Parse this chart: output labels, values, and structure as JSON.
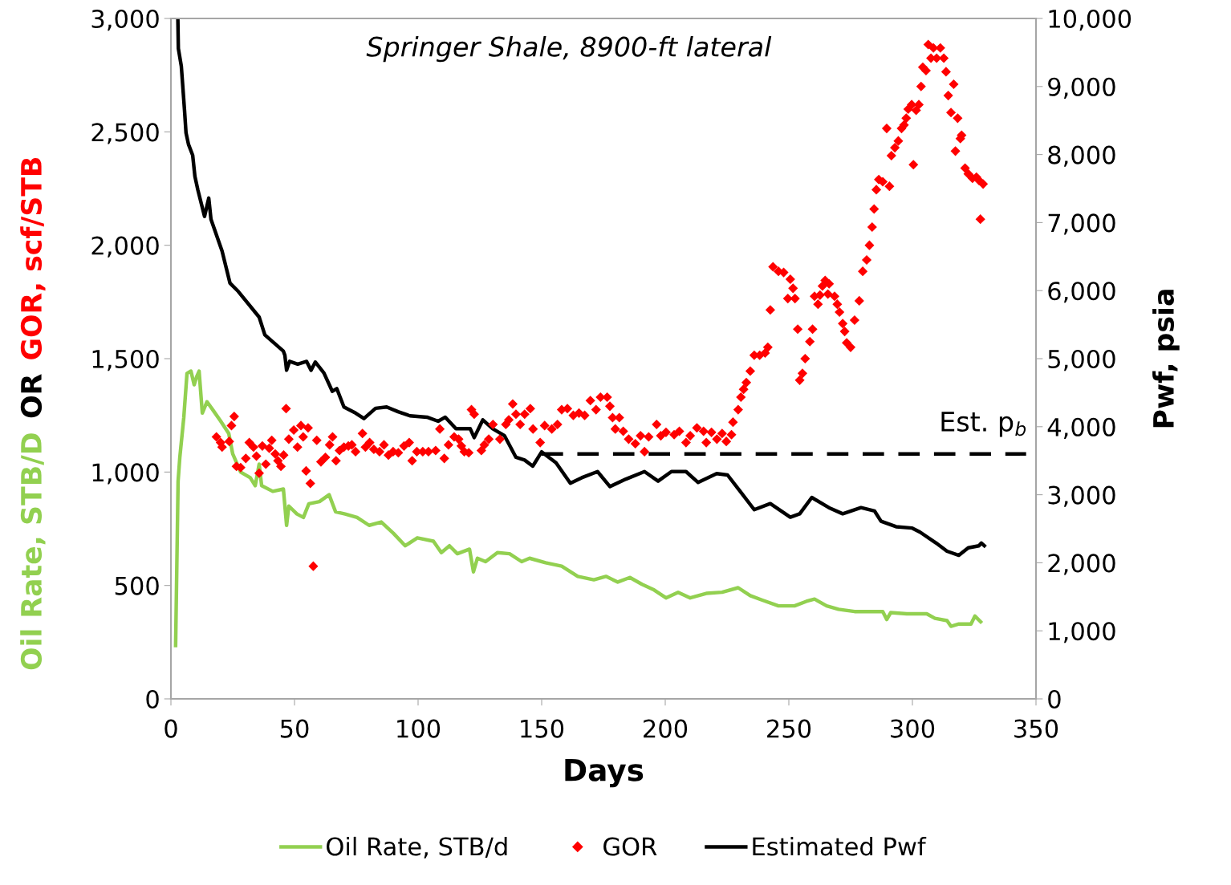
{
  "chart_data": {
    "type": "line",
    "title": "Springer Shale, 8900-ft lateral",
    "xlabel": "Days",
    "ylabel": [
      "Oil Rate, STB/D",
      "OR",
      "GOR, scf/STB"
    ],
    "y2label": "Pwf, psia",
    "xlim": [
      0,
      350
    ],
    "xticks": [
      0,
      50,
      100,
      150,
      200,
      250,
      300,
      350
    ],
    "ylim": [
      0,
      3000
    ],
    "yticks": [
      0,
      500,
      {
        "value": 1000,
        "label": "1,000"
      },
      {
        "value": 1500,
        "label": "1,500"
      },
      {
        "value": 2000,
        "label": "2,000"
      },
      {
        "value": 2500,
        "label": "2,500"
      },
      {
        "value": 3000,
        "label": "3,000"
      }
    ],
    "y2lim": [
      0,
      10000
    ],
    "y2ticks": [
      0,
      {
        "value": 1000,
        "label": "1,000"
      },
      {
        "value": 2000,
        "label": "2,000"
      },
      {
        "value": 3000,
        "label": "3,000"
      },
      {
        "value": 4000,
        "label": "4,000"
      },
      {
        "value": 5000,
        "label": "5,000"
      },
      {
        "value": 6000,
        "label": "6,000"
      },
      {
        "value": 7000,
        "label": "7,000"
      },
      {
        "value": 8000,
        "label": "8,000"
      },
      {
        "value": 9000,
        "label": "9,000"
      },
      {
        "value": 10000,
        "label": "10,000"
      }
    ],
    "grid": false,
    "legend": "bottom",
    "annotations": [
      "Est. p$_{b}$"
    ],
    "series": [
      {
        "name": "Oil Rate, STB/d",
        "color": "#92d050",
        "x": [
          1.9,
          2.9,
          3.6,
          5.2,
          6.5,
          8.1,
          9.4,
          10.4,
          11.4,
          12.7,
          14.6,
          16.9,
          20.1,
          23.4,
          25,
          28.2,
          32.1,
          34.1,
          35.7,
          36.7,
          41.2,
          45.5,
          46.8,
          47.7,
          51,
          53.6,
          55.8,
          60.1,
          64,
          66.6,
          70.5,
          75.3,
          80.2,
          85.1,
          90,
          94.8,
          99.7,
          106.2,
          109.4,
          112.7,
          115.9,
          120.8,
          122.4,
          124,
          127.3,
          132.1,
          137,
          141.9,
          145.1,
          151.6,
          158.1,
          164.6,
          171.1,
          176,
          180.8,
          185.7,
          190.6,
          195.5,
          200.3,
          205.2,
          210.1,
          216.6,
          223,
          229.5,
          234.4,
          239.3,
          245.8,
          252.3,
          257.1,
          260.4,
          265.3,
          270.1,
          276.6,
          283.1,
          288,
          289.6,
          291.2,
          297.7,
          305.8,
          309.1,
          314,
          315.6,
          318.8,
          323.7,
          325.3,
          327.6
        ],
        "values": [
          235,
          960,
          1065,
          1240,
          1435,
          1445,
          1385,
          1420,
          1445,
          1260,
          1310,
          1275,
          1225,
          1170,
          1080,
          1000,
          975,
          940,
          1035,
          940,
          915,
          925,
          765,
          850,
          815,
          800,
          860,
          870,
          900,
          825,
          815,
          800,
          765,
          780,
          730,
          675,
          710,
          695,
          645,
          675,
          640,
          660,
          560,
          620,
          605,
          645,
          640,
          605,
          620,
          600,
          585,
          540,
          525,
          540,
          515,
          535,
          505,
          480,
          445,
          470,
          445,
          465,
          470,
          490,
          455,
          435,
          410,
          410,
          430,
          440,
          410,
          395,
          385,
          385,
          385,
          350,
          380,
          375,
          375,
          355,
          345,
          320,
          330,
          330,
          365,
          340
        ]
      },
      {
        "name": "GOR",
        "type": "scatter",
        "marker": "diamond",
        "color": "#ff0000",
        "x": [
          18.4,
          20.1,
          20.7,
          23.6,
          25.6,
          24.5,
          26.5,
          28.2,
          30.3,
          31.7,
          33.4,
          34.6,
          35.7,
          37,
          38.4,
          39.8,
          40.8,
          42.2,
          43.3,
          44.5,
          45.6,
          46.6,
          47.7,
          49.7,
          51.2,
          52.6,
          53.5,
          54.7,
          55.5,
          56.4,
          57.6,
          59,
          60.7,
          62.5,
          64.2,
          65.4,
          66.8,
          68.2,
          70,
          71.8,
          73.2,
          74.7,
          77.5,
          78.7,
          80.4,
          82.1,
          84.4,
          86.2,
          88,
          89.9,
          92,
          94.3,
          96.4,
          97.6,
          99.5,
          101.9,
          104.2,
          107.1,
          108.8,
          110.6,
          112.3,
          114.6,
          116.4,
          117.5,
          118.7,
          120.5,
          121.6,
          122.7,
          125.6,
          126.8,
          128.6,
          130.3,
          133.1,
          135.5,
          136.7,
          138.3,
          139.6,
          141.3,
          143.1,
          145.4,
          146.5,
          149.4,
          151.2,
          154.1,
          156.4,
          158.1,
          160.4,
          162.8,
          165.1,
          167.4,
          169.7,
          172,
          173.8,
          176.5,
          177.6,
          178.7,
          179.8,
          181.4,
          183,
          185.2,
          187.9,
          190,
          191.6,
          193.3,
          196.5,
          198.2,
          200.3,
          203.6,
          205.7,
          208.4,
          210.1,
          212.8,
          215.5,
          216.6,
          218.7,
          220.9,
          223,
          224.7,
          226.8,
          227.4,
          229.5,
          230.6,
          231.7,
          232.8,
          234.4,
          236,
          238.2,
          240.4,
          241.5,
          242.5,
          243.6,
          245.8,
          247.9,
          249.6,
          250.6,
          251.7,
          252.5,
          253.6,
          254.4,
          255.5,
          256.6,
          258.5,
          259.6,
          260.4,
          261.8,
          262.6,
          263.6,
          264.7,
          265.8,
          266.3,
          268.5,
          269.6,
          270.5,
          271.8,
          272.6,
          273.4,
          275,
          276.6,
          278.5,
          279.9,
          281.5,
          282.6,
          283.7,
          284.5,
          285.4,
          286.4,
          288,
          289.6,
          290.7,
          291.5,
          292.9,
          294.3,
          295.6,
          296.6,
          297.5,
          298.3,
          299.7,
          300.4,
          301.5,
          302.6,
          303.5,
          304.2,
          305.5,
          306.4,
          307.5,
          308.5,
          309.8,
          311.3,
          312.7,
          313.6,
          314.5,
          315.6,
          316.7,
          317.4,
          318.3,
          319.4,
          319.9,
          321.3,
          322.6,
          324.3,
          325.9,
          327,
          327.5,
          328.6
        ],
        "values": [
          1155,
          1130,
          1110,
          1135,
          1245,
          1205,
          1025,
          1020,
          1060,
          1130,
          1110,
          1070,
          995,
          1115,
          1035,
          1105,
          1140,
          1080,
          1050,
          1025,
          1075,
          1280,
          1145,
          1185,
          1110,
          1205,
          1155,
          1005,
          1195,
          950,
          585,
          1140,
          1045,
          1065,
          1120,
          1155,
          1050,
          1095,
          1110,
          1115,
          1120,
          1090,
          1170,
          1110,
          1130,
          1100,
          1090,
          1120,
          1075,
          1090,
          1085,
          1115,
          1130,
          1050,
          1090,
          1090,
          1090,
          1095,
          1190,
          1060,
          1120,
          1155,
          1145,
          1115,
          1090,
          1085,
          1275,
          1255,
          1095,
          1120,
          1145,
          1210,
          1145,
          1210,
          1230,
          1300,
          1255,
          1210,
          1255,
          1280,
          1190,
          1130,
          1205,
          1190,
          1210,
          1275,
          1280,
          1250,
          1260,
          1250,
          1315,
          1275,
          1330,
          1330,
          1290,
          1240,
          1190,
          1240,
          1180,
          1145,
          1125,
          1160,
          1090,
          1155,
          1210,
          1160,
          1175,
          1165,
          1180,
          1130,
          1160,
          1195,
          1180,
          1130,
          1175,
          1145,
          1170,
          1135,
          1165,
          1220,
          1275,
          1330,
          1365,
          1395,
          1445,
          1515,
          1515,
          1525,
          1550,
          1715,
          1905,
          1885,
          1880,
          1765,
          1850,
          1810,
          1765,
          1630,
          1405,
          1435,
          1500,
          1575,
          1630,
          1775,
          1740,
          1780,
          1820,
          1845,
          1785,
          1830,
          1775,
          1740,
          1705,
          1655,
          1620,
          1570,
          1550,
          1670,
          1755,
          1885,
          1935,
          2000,
          2080,
          2160,
          2245,
          2290,
          2280,
          2515,
          2260,
          2395,
          2430,
          2460,
          2515,
          2530,
          2560,
          2600,
          2620,
          2355,
          2595,
          2620,
          2700,
          2785,
          2770,
          2885,
          2825,
          2870,
          2825,
          2870,
          2825,
          2765,
          2660,
          2585,
          2710,
          2415,
          2560,
          2470,
          2485,
          2340,
          2315,
          2295,
          2300,
          2285,
          2115,
          2270
        ]
      },
      {
        "name": "Estimated Pwf",
        "type": "line",
        "axis": "y2",
        "color": "#000000",
        "x": [
          2.8,
          3.0,
          4.2,
          5.5,
          6.1,
          7.1,
          8.8,
          9.7,
          10.9,
          13.6,
          15.3,
          16.2,
          20.7,
          23.9,
          27.2,
          35.7,
          38,
          45.5,
          46.1,
          46.8,
          48,
          51.3,
          54.9,
          56.7,
          58.4,
          61.9,
          65.3,
          67.1,
          70,
          74.7,
          78.1,
          82.8,
          87.3,
          91.9,
          96.7,
          103.6,
          108.1,
          111,
          115.3,
          121.1,
          122.7,
          126.2,
          130.2,
          134.9,
          139.6,
          143.1,
          146.4,
          150,
          155.8,
          161.6,
          166.2,
          172.6,
          177.6,
          184.1,
          191.6,
          197.1,
          202.5,
          208.4,
          213.3,
          220.8,
          225.2,
          230.5,
          236,
          242.5,
          250.6,
          254.4,
          259.3,
          266.2,
          271.8,
          279.2,
          284.7,
          287.3,
          293.4,
          299.9,
          303.1,
          309.6,
          314,
          318.8,
          322.6,
          326.9,
          327.9,
          329.1
        ],
        "values": [
          10000,
          9560,
          9300,
          8650,
          8320,
          8150,
          7990,
          7680,
          7480,
          7090,
          7360,
          7050,
          6580,
          6110,
          5990,
          5610,
          5350,
          5110,
          5050,
          4830,
          4960,
          4920,
          4960,
          4830,
          4950,
          4790,
          4520,
          4560,
          4290,
          4200,
          4120,
          4270,
          4290,
          4220,
          4160,
          4140,
          4080,
          4140,
          3970,
          3970,
          3840,
          4100,
          3970,
          3870,
          3550,
          3510,
          3420,
          3630,
          3470,
          3170,
          3250,
          3340,
          3120,
          3230,
          3340,
          3200,
          3340,
          3340,
          3180,
          3310,
          3290,
          3040,
          2780,
          2870,
          2670,
          2720,
          2960,
          2810,
          2720,
          2810,
          2760,
          2610,
          2530,
          2510,
          2450,
          2290,
          2170,
          2110,
          2220,
          2250,
          2290,
          2250
        ]
      },
      {
        "axis": "y2",
        "line_style": "dashed",
        "color": "#000000",
        "x": [
          150,
          346
        ],
        "values": [
          3600,
          3600
        ]
      }
    ]
  }
}
